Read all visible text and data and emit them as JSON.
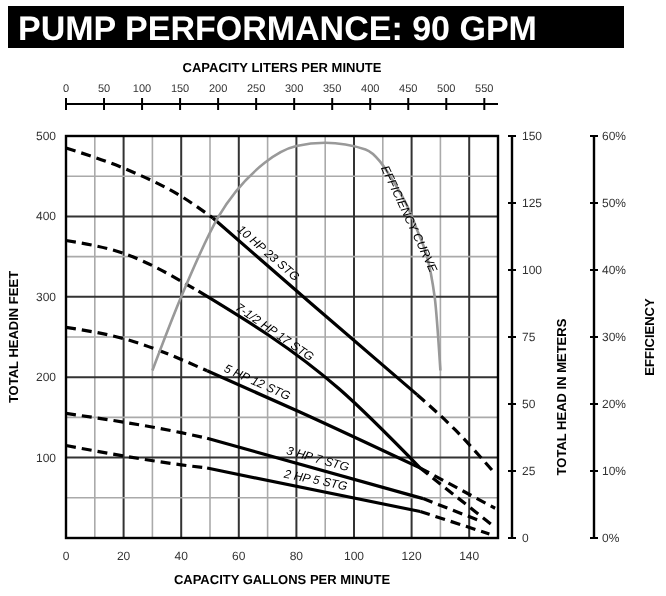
{
  "chart_data": {
    "type": "line",
    "title": "PUMP PERFORMANCE: 90 GPM",
    "xlabel": "CAPACITY GALLONS PER MINUTE",
    "x2label": "CAPACITY LITERS PER MINUTE",
    "ylabel": "TOTAL HEADIN FEET",
    "y2label": "TOTAL HEAD IN METERS",
    "y3label": "EFFICIENCY",
    "xlim": [
      0,
      150
    ],
    "xticks": [
      0,
      {
        "value": 10,
        "label": null
      },
      20,
      {
        "value": 30,
        "label": null
      },
      40,
      {
        "value": 50,
        "label": null
      },
      60,
      {
        "value": 70,
        "label": null
      },
      80,
      {
        "value": 90,
        "label": null
      },
      100,
      {
        "value": 110,
        "label": null
      },
      120,
      {
        "value": 130,
        "label": null
      },
      140
    ],
    "x2lim": [
      0,
      568
    ],
    "x2ticks": [
      0,
      50,
      100,
      150,
      200,
      250,
      300,
      350,
      400,
      450,
      500,
      550
    ],
    "ylim": [
      0,
      500
    ],
    "yticks": [
      {
        "value": 0,
        "label": null
      },
      {
        "value": 50,
        "label": null
      },
      100,
      {
        "value": 150,
        "label": null
      },
      200,
      {
        "value": 250,
        "label": null
      },
      300,
      {
        "value": 350,
        "label": null
      },
      400,
      {
        "value": 450,
        "label": null
      },
      500
    ],
    "y2lim": [
      0,
      150
    ],
    "y2ticks": [
      0,
      25,
      50,
      75,
      100,
      125,
      150
    ],
    "y3lim": [
      0,
      60
    ],
    "y3ticks": [
      {
        "value": 0,
        "label": "0%"
      },
      {
        "value": 10,
        "label": "10%"
      },
      {
        "value": 20,
        "label": "20%"
      },
      {
        "value": 30,
        "label": "30%"
      },
      {
        "value": 40,
        "label": "40%"
      },
      {
        "value": 50,
        "label": "50%"
      },
      {
        "value": 60,
        "label": "60%"
      }
    ],
    "grid": true,
    "series": [
      {
        "color": "#000000",
        "line_style": "dashed",
        "x": [
          0,
          20,
          40,
          51
        ],
        "values": [
          485,
          460,
          425,
          398
        ]
      },
      {
        "name": "10 HP 23 STG",
        "color": "#000000",
        "line_style": "solid",
        "x": [
          51,
          85,
          122
        ],
        "values": [
          398,
          292,
          178
        ]
      },
      {
        "color": "#000000",
        "line_style": "dashed",
        "x": [
          122,
          135,
          149
        ],
        "values": [
          178,
          135,
          80
        ]
      },
      {
        "color": "#000000",
        "line_style": "dashed",
        "x": [
          0,
          20,
          46
        ],
        "values": [
          370,
          354,
          307
        ]
      },
      {
        "name": "7-1/2 HP 17 STG",
        "color": "#000000",
        "line_style": "solid",
        "x": [
          46,
          95,
          123
        ],
        "values": [
          307,
          185,
          87
        ]
      },
      {
        "color": "#000000",
        "line_style": "dashed",
        "x": [
          123,
          149
        ],
        "values": [
          87,
          37
        ]
      },
      {
        "color": "#000000",
        "line_style": "dashed",
        "x": [
          0,
          20,
          49
        ],
        "values": [
          262,
          248,
          208
        ]
      },
      {
        "name": "5 HP 12 STG",
        "color": "#000000",
        "line_style": "solid",
        "x": [
          49,
          81,
          123
        ],
        "values": [
          208,
          157,
          87
        ]
      },
      {
        "color": "#000000",
        "line_style": "dashed",
        "x": [
          123,
          148
        ],
        "values": [
          87,
          16
        ]
      },
      {
        "color": "#000000",
        "line_style": "dashed",
        "x": [
          0,
          40,
          49
        ],
        "values": [
          155,
          131,
          124
        ]
      },
      {
        "name": "3 HP 7 STG",
        "color": "#000000",
        "line_style": "solid",
        "x": [
          49,
          124
        ],
        "values": [
          124,
          49
        ]
      },
      {
        "color": "#000000",
        "line_style": "dashed",
        "x": [
          124,
          144
        ],
        "values": [
          49,
          21
        ]
      },
      {
        "color": "#000000",
        "line_style": "dashed",
        "x": [
          0,
          40,
          49
        ],
        "values": [
          115,
          91,
          87
        ]
      },
      {
        "name": "2 HP 5 STG",
        "color": "#000000",
        "line_style": "solid",
        "x": [
          49,
          123
        ],
        "values": [
          87,
          33
        ]
      },
      {
        "color": "#000000",
        "line_style": "dashed",
        "x": [
          123,
          147
        ],
        "values": [
          33,
          5
        ]
      },
      {
        "name": "EFFICIENCY CURVE",
        "color": "#999999",
        "line_style": "solid",
        "axis": "y3",
        "x": [
          30,
          40,
          53,
          69,
          80,
          90,
          104,
          114,
          121,
          128,
          130
        ],
        "values": [
          25,
          36,
          48,
          56,
          58.5,
          59,
          58,
          53,
          47,
          36,
          25
        ]
      }
    ]
  }
}
